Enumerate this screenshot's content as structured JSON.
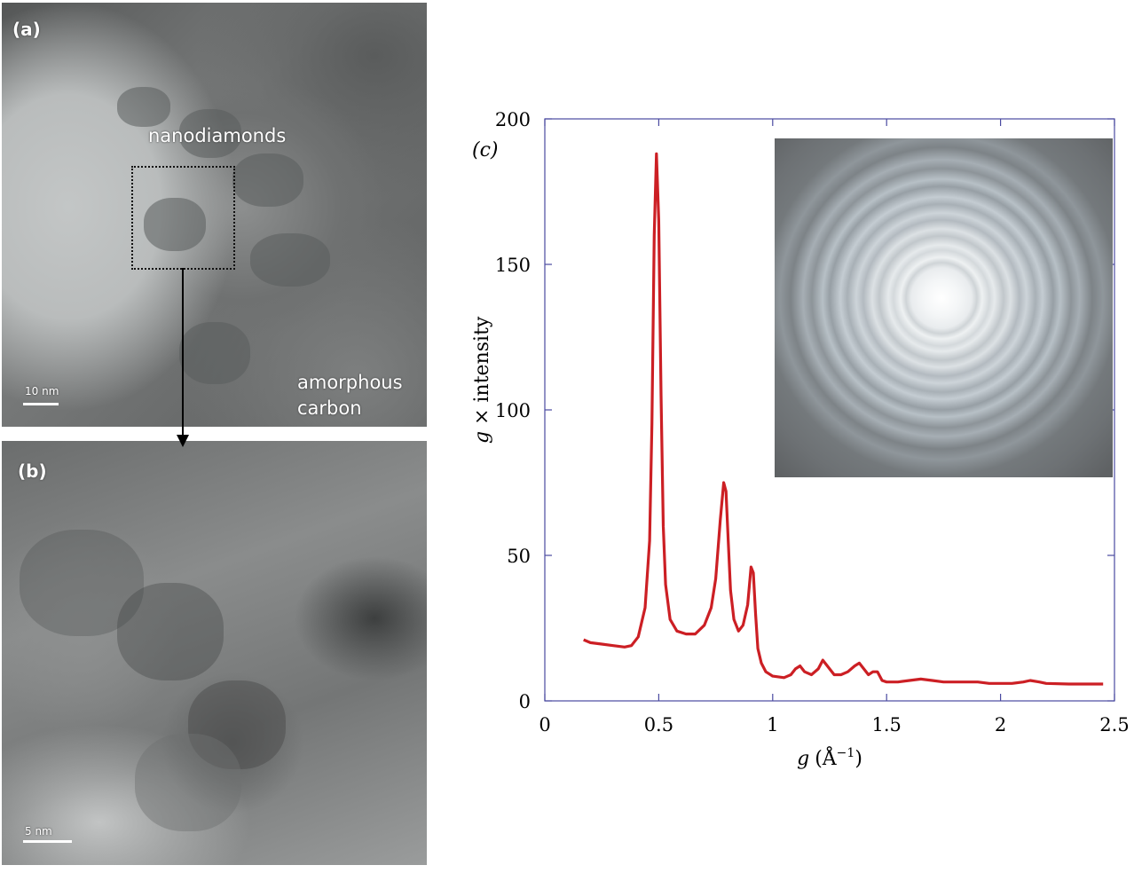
{
  "panel_a": {
    "label": "(a)",
    "annotation_nanodiamonds": "nanodiamonds",
    "annotation_amorphous_line1": "amorphous",
    "annotation_amorphous_line2": "carbon",
    "scale_bar_label": "10 nm"
  },
  "panel_b": {
    "label": "(b)",
    "scale_bar_label": "5 nm"
  },
  "panel_c": {
    "label": "(c)"
  },
  "chart_data": {
    "type": "line",
    "xlabel_main": "g",
    "xlabel_unit": "(Å",
    "xlabel_sup": "−1",
    "xlabel_close": ")",
    "ylabel_main": "g",
    "ylabel_rest": " × intensity",
    "xlim": [
      0,
      2.5
    ],
    "ylim": [
      0,
      200
    ],
    "x_ticks": [
      "0",
      "0.5",
      "1",
      "1.5",
      "2",
      "2.5"
    ],
    "y_ticks": [
      "0",
      "50",
      "100",
      "150",
      "200"
    ],
    "line_color": "#cc1f24",
    "series": [
      {
        "x": [
          0.17,
          0.2,
          0.25,
          0.3,
          0.35,
          0.38,
          0.41,
          0.44,
          0.46,
          0.47,
          0.48,
          0.49,
          0.5,
          0.51,
          0.52,
          0.53,
          0.55,
          0.58,
          0.62,
          0.66,
          0.7,
          0.73,
          0.75,
          0.77,
          0.785,
          0.795,
          0.805,
          0.815,
          0.83,
          0.85,
          0.87,
          0.89,
          0.905,
          0.915,
          0.925,
          0.935,
          0.95,
          0.97,
          1.0,
          1.05,
          1.08,
          1.1,
          1.12,
          1.14,
          1.17,
          1.2,
          1.22,
          1.24,
          1.27,
          1.3,
          1.33,
          1.36,
          1.38,
          1.4,
          1.42,
          1.44,
          1.46,
          1.48,
          1.5,
          1.55,
          1.6,
          1.65,
          1.7,
          1.75,
          1.8,
          1.85,
          1.9,
          1.95,
          2.0,
          2.05,
          2.1,
          2.13,
          2.17,
          2.2,
          2.3,
          2.45
        ],
        "y": [
          21,
          20,
          19.5,
          19,
          18.5,
          19,
          22,
          32,
          55,
          95,
          160,
          188,
          165,
          105,
          60,
          40,
          28,
          24,
          23,
          23,
          26,
          32,
          42,
          62,
          75,
          72,
          55,
          38,
          28,
          24,
          26,
          33,
          46,
          44,
          30,
          18,
          13,
          10,
          8.5,
          8,
          9,
          11,
          12,
          10,
          9,
          11,
          14,
          12,
          9,
          9,
          10,
          12,
          13,
          11,
          9,
          10,
          10,
          7,
          6.5,
          6.5,
          7,
          7.5,
          7,
          6.5,
          6.5,
          6.5,
          6.5,
          6,
          6,
          6,
          6.5,
          7,
          6.5,
          6,
          5.8,
          5.8
        ]
      }
    ]
  }
}
